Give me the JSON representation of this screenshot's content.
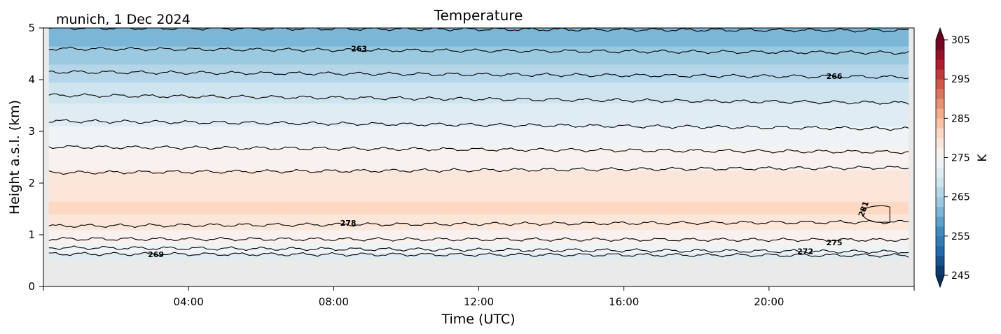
{
  "chart_data": {
    "type": "heatmap",
    "title": "Temperature",
    "location_date": "munich, 1 Dec 2024",
    "xlabel": "Time (UTC)",
    "ylabel": "Height a.s.l. (km)",
    "x_range_hours": [
      0,
      24
    ],
    "x_ticks": [
      {
        "value": 4,
        "label": "04:00"
      },
      {
        "value": 8,
        "label": "08:00"
      },
      {
        "value": 12,
        "label": "12:00"
      },
      {
        "value": 16,
        "label": "16:00"
      },
      {
        "value": 20,
        "label": "20:00"
      }
    ],
    "ylim": [
      0,
      5
    ],
    "y_ticks": [
      0,
      1,
      2,
      3,
      4,
      5
    ],
    "data_valid_height_km": [
      0.55,
      5.0
    ],
    "data_valid_time_hours": [
      0.15,
      23.85
    ],
    "no_data_color": "#eaeaea",
    "colormap": "RdBu_r",
    "colorbar": {
      "label": "K",
      "min": 245,
      "max": 305,
      "ticks": [
        245,
        255,
        265,
        275,
        285,
        295,
        305
      ],
      "extend": "both"
    },
    "temperature_profile": [
      {
        "height_km": 0.55,
        "temp_K": 270.5
      },
      {
        "height_km": 0.62,
        "temp_K": 272.0
      },
      {
        "height_km": 0.85,
        "temp_K": 275.0
      },
      {
        "height_km": 1.15,
        "temp_K": 278.0
      },
      {
        "height_km": 1.5,
        "temp_K": 281.0
      },
      {
        "height_km": 1.85,
        "temp_K": 278.5
      },
      {
        "height_km": 2.15,
        "temp_K": 278.0
      },
      {
        "height_km": 2.7,
        "temp_K": 275.0
      },
      {
        "height_km": 3.2,
        "temp_K": 272.0
      },
      {
        "height_km": 3.7,
        "temp_K": 269.0
      },
      {
        "height_km": 4.15,
        "temp_K": 266.0
      },
      {
        "height_km": 4.6,
        "temp_K": 263.0
      },
      {
        "height_km": 5.0,
        "temp_K": 260.0
      }
    ],
    "contours": [
      {
        "level": 269,
        "heights_km": [
          0.63,
          0.6
        ]
      },
      {
        "level": 272,
        "heights_km": [
          0.75,
          0.67
        ]
      },
      {
        "level": 275,
        "heights_km": [
          0.92,
          0.9
        ]
      },
      {
        "level": 278,
        "heights_km": [
          1.17,
          1.25
        ]
      },
      {
        "level": 278,
        "heights_km": [
          2.2,
          2.3
        ]
      },
      {
        "level": 275,
        "heights_km": [
          2.7,
          2.6
        ]
      },
      {
        "level": 272,
        "heights_km": [
          3.2,
          3.05
        ]
      },
      {
        "level": 269,
        "heights_km": [
          3.7,
          3.55
        ]
      },
      {
        "level": 266,
        "heights_km": [
          4.15,
          4.05
        ]
      },
      {
        "level": 263,
        "heights_km": [
          4.6,
          4.52
        ]
      },
      {
        "level": 260,
        "heights_km": [
          5.0,
          4.95
        ]
      }
    ],
    "contour_labels": [
      {
        "text": "263",
        "time_h": 8.7,
        "height_km": 4.6
      },
      {
        "text": "266",
        "time_h": 21.8,
        "height_km": 4.07
      },
      {
        "text": "278",
        "time_h": 8.4,
        "height_km": 1.23
      },
      {
        "text": "281",
        "time_h": 22.6,
        "height_km": 1.5
      },
      {
        "text": "269",
        "time_h": 3.1,
        "height_km": 0.62
      },
      {
        "text": "272",
        "time_h": 21.0,
        "height_km": 0.68
      },
      {
        "text": "275",
        "time_h": 21.8,
        "height_km": 0.85
      }
    ]
  }
}
